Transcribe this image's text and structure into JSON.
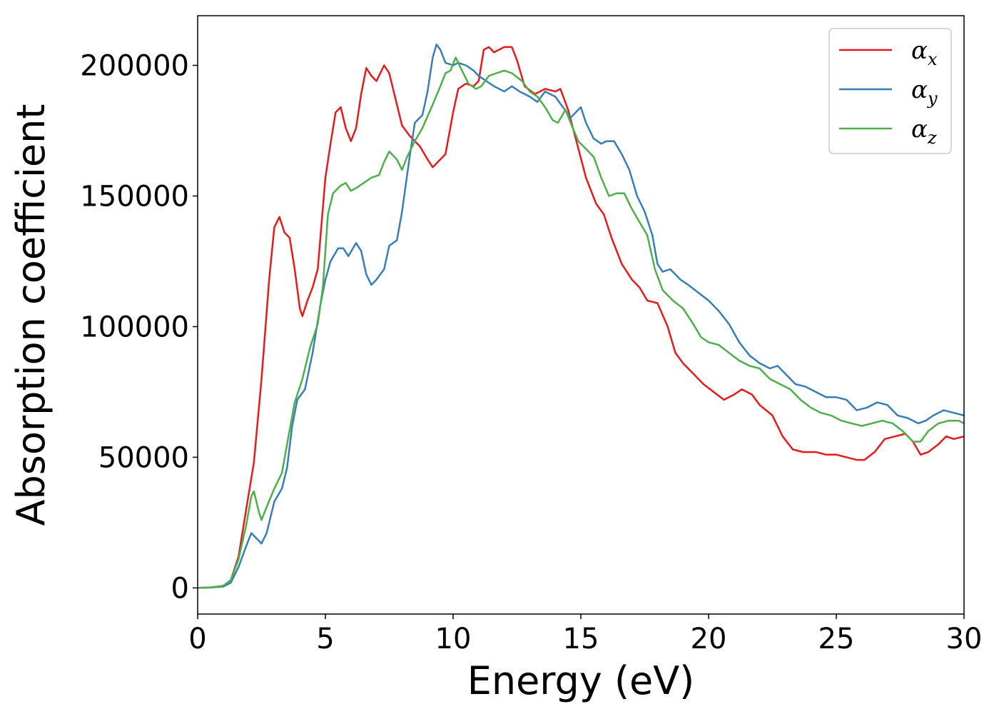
{
  "chart_data": {
    "type": "line",
    "xlabel": "Energy (eV)",
    "ylabel": "Absorption coefficient",
    "xlim": [
      0,
      30
    ],
    "ylim": [
      -10000,
      219000
    ],
    "x_ticks": [
      0,
      5,
      10,
      15,
      20,
      25,
      30
    ],
    "y_ticks": [
      0,
      50000,
      100000,
      150000,
      200000
    ],
    "grid": false,
    "legend_placement": "top-right",
    "series": [
      {
        "name": "α",
        "subscript": "x",
        "color": "#e41a1c",
        "points": [
          [
            0,
            0
          ],
          [
            0.5,
            200
          ],
          [
            1,
            800
          ],
          [
            1.3,
            3000
          ],
          [
            1.6,
            12000
          ],
          [
            1.9,
            30000
          ],
          [
            2.2,
            48000
          ],
          [
            2.5,
            80000
          ],
          [
            2.8,
            118000
          ],
          [
            3.0,
            138000
          ],
          [
            3.2,
            142000
          ],
          [
            3.4,
            136000
          ],
          [
            3.6,
            134000
          ],
          [
            3.8,
            122000
          ],
          [
            4.0,
            107000
          ],
          [
            4.1,
            104000
          ],
          [
            4.3,
            110000
          ],
          [
            4.5,
            115000
          ],
          [
            4.7,
            122000
          ],
          [
            5.0,
            157000
          ],
          [
            5.2,
            170000
          ],
          [
            5.4,
            182000
          ],
          [
            5.6,
            184000
          ],
          [
            5.8,
            176000
          ],
          [
            6.0,
            171000
          ],
          [
            6.2,
            176000
          ],
          [
            6.4,
            189000
          ],
          [
            6.6,
            199000
          ],
          [
            6.8,
            196000
          ],
          [
            7.0,
            194000
          ],
          [
            7.3,
            200000
          ],
          [
            7.5,
            197000
          ],
          [
            7.8,
            185000
          ],
          [
            8.0,
            177000
          ],
          [
            8.3,
            173000
          ],
          [
            8.7,
            169000
          ],
          [
            9.0,
            164000
          ],
          [
            9.2,
            161000
          ],
          [
            9.5,
            164000
          ],
          [
            9.7,
            166000
          ],
          [
            10.0,
            182000
          ],
          [
            10.2,
            191000
          ],
          [
            10.5,
            193000
          ],
          [
            10.8,
            192000
          ],
          [
            11.0,
            194000
          ],
          [
            11.2,
            206000
          ],
          [
            11.4,
            207000
          ],
          [
            11.6,
            205000
          ],
          [
            11.8,
            206000
          ],
          [
            12.0,
            207000
          ],
          [
            12.3,
            207000
          ],
          [
            12.5,
            202000
          ],
          [
            12.8,
            192000
          ],
          [
            13.2,
            189000
          ],
          [
            13.6,
            191000
          ],
          [
            14.0,
            190000
          ],
          [
            14.2,
            191000
          ],
          [
            14.5,
            183000
          ],
          [
            14.8,
            172000
          ],
          [
            15.2,
            157000
          ],
          [
            15.6,
            147000
          ],
          [
            15.9,
            143000
          ],
          [
            16.2,
            134000
          ],
          [
            16.6,
            124000
          ],
          [
            17.0,
            118000
          ],
          [
            17.3,
            115000
          ],
          [
            17.6,
            110000
          ],
          [
            18.0,
            109000
          ],
          [
            18.4,
            100000
          ],
          [
            18.7,
            90000
          ],
          [
            19.0,
            86000
          ],
          [
            19.4,
            82000
          ],
          [
            19.8,
            78000
          ],
          [
            20.2,
            75000
          ],
          [
            20.6,
            72000
          ],
          [
            21.0,
            74000
          ],
          [
            21.3,
            76000
          ],
          [
            21.7,
            74000
          ],
          [
            22.0,
            70000
          ],
          [
            22.5,
            66000
          ],
          [
            22.9,
            58000
          ],
          [
            23.3,
            53000
          ],
          [
            23.7,
            52000
          ],
          [
            24.2,
            52000
          ],
          [
            24.6,
            51000
          ],
          [
            25.0,
            51000
          ],
          [
            25.4,
            50000
          ],
          [
            25.8,
            49000
          ],
          [
            26.1,
            49000
          ],
          [
            26.5,
            52000
          ],
          [
            26.9,
            57000
          ],
          [
            27.3,
            58000
          ],
          [
            27.7,
            59000
          ],
          [
            28.0,
            56000
          ],
          [
            28.3,
            51000
          ],
          [
            28.6,
            52000
          ],
          [
            29.0,
            55000
          ],
          [
            29.3,
            58000
          ],
          [
            29.6,
            57000
          ],
          [
            30.0,
            58000
          ]
        ]
      },
      {
        "name": "α",
        "subscript": "y",
        "color": "#377eb8",
        "points": [
          [
            0,
            0
          ],
          [
            0.5,
            150
          ],
          [
            1,
            500
          ],
          [
            1.3,
            2000
          ],
          [
            1.6,
            8000
          ],
          [
            1.9,
            16000
          ],
          [
            2.1,
            21000
          ],
          [
            2.3,
            19000
          ],
          [
            2.5,
            17000
          ],
          [
            2.7,
            21000
          ],
          [
            3.0,
            33000
          ],
          [
            3.3,
            38000
          ],
          [
            3.5,
            46000
          ],
          [
            3.7,
            62000
          ],
          [
            3.9,
            72000
          ],
          [
            4.2,
            76000
          ],
          [
            4.5,
            90000
          ],
          [
            4.8,
            108000
          ],
          [
            5.0,
            118000
          ],
          [
            5.2,
            125000
          ],
          [
            5.5,
            130000
          ],
          [
            5.7,
            130000
          ],
          [
            5.9,
            127000
          ],
          [
            6.2,
            132000
          ],
          [
            6.4,
            129000
          ],
          [
            6.6,
            120000
          ],
          [
            6.8,
            116000
          ],
          [
            7.0,
            118000
          ],
          [
            7.3,
            122000
          ],
          [
            7.5,
            131000
          ],
          [
            7.8,
            133000
          ],
          [
            8.0,
            144000
          ],
          [
            8.3,
            165000
          ],
          [
            8.5,
            178000
          ],
          [
            8.8,
            181000
          ],
          [
            9.0,
            190000
          ],
          [
            9.2,
            203000
          ],
          [
            9.35,
            208000
          ],
          [
            9.5,
            206000
          ],
          [
            9.7,
            201000
          ],
          [
            10.0,
            200000
          ],
          [
            10.2,
            201000
          ],
          [
            10.5,
            200000
          ],
          [
            10.8,
            198000
          ],
          [
            11.0,
            196000
          ],
          [
            11.3,
            194000
          ],
          [
            11.6,
            192000
          ],
          [
            12.0,
            190000
          ],
          [
            12.3,
            192000
          ],
          [
            12.6,
            190000
          ],
          [
            13.0,
            188000
          ],
          [
            13.3,
            186000
          ],
          [
            13.6,
            190000
          ],
          [
            14.0,
            188000
          ],
          [
            14.3,
            184000
          ],
          [
            14.6,
            180000
          ],
          [
            14.8,
            182000
          ],
          [
            15.0,
            184000
          ],
          [
            15.2,
            178000
          ],
          [
            15.5,
            172000
          ],
          [
            15.8,
            170000
          ],
          [
            16.0,
            171000
          ],
          [
            16.3,
            171000
          ],
          [
            16.6,
            166000
          ],
          [
            16.9,
            160000
          ],
          [
            17.2,
            150000
          ],
          [
            17.5,
            144000
          ],
          [
            17.8,
            135000
          ],
          [
            18.0,
            124000
          ],
          [
            18.2,
            121000
          ],
          [
            18.5,
            122000
          ],
          [
            18.9,
            118000
          ],
          [
            19.2,
            116000
          ],
          [
            19.6,
            113000
          ],
          [
            20.0,
            110000
          ],
          [
            20.4,
            106000
          ],
          [
            20.8,
            101000
          ],
          [
            21.2,
            94000
          ],
          [
            21.6,
            89000
          ],
          [
            22.0,
            86000
          ],
          [
            22.4,
            84000
          ],
          [
            22.7,
            85000
          ],
          [
            23.0,
            82000
          ],
          [
            23.4,
            78000
          ],
          [
            23.8,
            77000
          ],
          [
            24.2,
            75000
          ],
          [
            24.6,
            73000
          ],
          [
            25.0,
            73000
          ],
          [
            25.4,
            72000
          ],
          [
            25.8,
            68000
          ],
          [
            26.2,
            69000
          ],
          [
            26.6,
            71000
          ],
          [
            27.0,
            70000
          ],
          [
            27.4,
            66000
          ],
          [
            27.8,
            65000
          ],
          [
            28.2,
            63000
          ],
          [
            28.5,
            64000
          ],
          [
            28.8,
            66000
          ],
          [
            29.2,
            68000
          ],
          [
            29.6,
            67000
          ],
          [
            30.0,
            66000
          ]
        ]
      },
      {
        "name": "α",
        "subscript": "z",
        "color": "#4daf4a",
        "points": [
          [
            0,
            0
          ],
          [
            0.5,
            200
          ],
          [
            1,
            700
          ],
          [
            1.3,
            3000
          ],
          [
            1.6,
            11000
          ],
          [
            1.9,
            24000
          ],
          [
            2.1,
            35000
          ],
          [
            2.2,
            37000
          ],
          [
            2.4,
            29000
          ],
          [
            2.5,
            26000
          ],
          [
            2.7,
            31000
          ],
          [
            3.0,
            38000
          ],
          [
            3.3,
            44000
          ],
          [
            3.5,
            55000
          ],
          [
            3.8,
            71000
          ],
          [
            4.1,
            80000
          ],
          [
            4.4,
            92000
          ],
          [
            4.7,
            101000
          ],
          [
            4.9,
            115000
          ],
          [
            5.1,
            143000
          ],
          [
            5.3,
            151000
          ],
          [
            5.6,
            154000
          ],
          [
            5.8,
            155000
          ],
          [
            6.0,
            152000
          ],
          [
            6.2,
            153000
          ],
          [
            6.5,
            155000
          ],
          [
            6.8,
            157000
          ],
          [
            7.1,
            158000
          ],
          [
            7.3,
            163000
          ],
          [
            7.5,
            167000
          ],
          [
            7.8,
            164000
          ],
          [
            8.0,
            160000
          ],
          [
            8.2,
            165000
          ],
          [
            8.5,
            171000
          ],
          [
            8.8,
            176000
          ],
          [
            9.2,
            185000
          ],
          [
            9.5,
            192000
          ],
          [
            9.7,
            197000
          ],
          [
            9.9,
            198000
          ],
          [
            10.1,
            203000
          ],
          [
            10.3,
            199000
          ],
          [
            10.6,
            193000
          ],
          [
            10.9,
            191000
          ],
          [
            11.1,
            192000
          ],
          [
            11.4,
            196000
          ],
          [
            11.7,
            197000
          ],
          [
            12.0,
            198000
          ],
          [
            12.3,
            197000
          ],
          [
            12.7,
            194000
          ],
          [
            13.0,
            190000
          ],
          [
            13.3,
            188000
          ],
          [
            13.6,
            184000
          ],
          [
            13.9,
            179000
          ],
          [
            14.1,
            178000
          ],
          [
            14.4,
            183000
          ],
          [
            14.6,
            178000
          ],
          [
            14.9,
            171000
          ],
          [
            15.2,
            168000
          ],
          [
            15.5,
            165000
          ],
          [
            15.8,
            157000
          ],
          [
            16.1,
            150000
          ],
          [
            16.4,
            151000
          ],
          [
            16.7,
            151000
          ],
          [
            17.0,
            145000
          ],
          [
            17.3,
            140000
          ],
          [
            17.6,
            135000
          ],
          [
            17.9,
            122000
          ],
          [
            18.2,
            114000
          ],
          [
            18.6,
            110000
          ],
          [
            19.0,
            107000
          ],
          [
            19.4,
            101000
          ],
          [
            19.7,
            96000
          ],
          [
            20.0,
            94000
          ],
          [
            20.4,
            93000
          ],
          [
            20.8,
            90000
          ],
          [
            21.2,
            87000
          ],
          [
            21.6,
            85000
          ],
          [
            22.0,
            84000
          ],
          [
            22.4,
            80000
          ],
          [
            22.8,
            78000
          ],
          [
            23.2,
            76000
          ],
          [
            23.6,
            72000
          ],
          [
            24.0,
            69000
          ],
          [
            24.4,
            67000
          ],
          [
            24.8,
            66000
          ],
          [
            25.2,
            64000
          ],
          [
            25.6,
            63000
          ],
          [
            26.0,
            62000
          ],
          [
            26.4,
            63000
          ],
          [
            26.8,
            64000
          ],
          [
            27.2,
            63000
          ],
          [
            27.6,
            60000
          ],
          [
            28.0,
            56000
          ],
          [
            28.3,
            56000
          ],
          [
            28.6,
            60000
          ],
          [
            29.0,
            63000
          ],
          [
            29.4,
            64000
          ],
          [
            29.8,
            64000
          ],
          [
            30.0,
            63000
          ]
        ]
      }
    ]
  }
}
